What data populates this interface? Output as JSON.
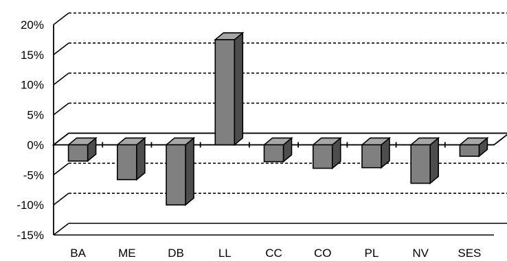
{
  "chart_data": {
    "type": "bar",
    "style": "3d-column",
    "title": "",
    "xlabel": "",
    "ylabel": "",
    "categories": [
      "BA",
      "ME",
      "DB",
      "LL",
      "CC",
      "CO",
      "PL",
      "NV",
      "SES"
    ],
    "series": [
      {
        "values": [
          -2.7,
          -5.8,
          -10.0,
          17.5,
          -2.8,
          -3.9,
          -3.8,
          -6.4,
          -1.9
        ]
      }
    ],
    "ylim": [
      -15,
      20
    ],
    "yticks": [
      20,
      15,
      10,
      5,
      0,
      -5,
      -10,
      -15
    ],
    "ytick_labels": [
      "20%",
      "15%",
      "10%",
      "5%",
      "0%",
      "-5%",
      "-10%",
      "-15%"
    ],
    "gridlines": true,
    "gridline_style": "dashed",
    "legend": "none",
    "colors": {
      "bar_front": "#808080",
      "bar_side": "#4d4d4d",
      "bar_top": "#a6a6a6",
      "lines": "#000000",
      "background": "#ffffff"
    }
  }
}
